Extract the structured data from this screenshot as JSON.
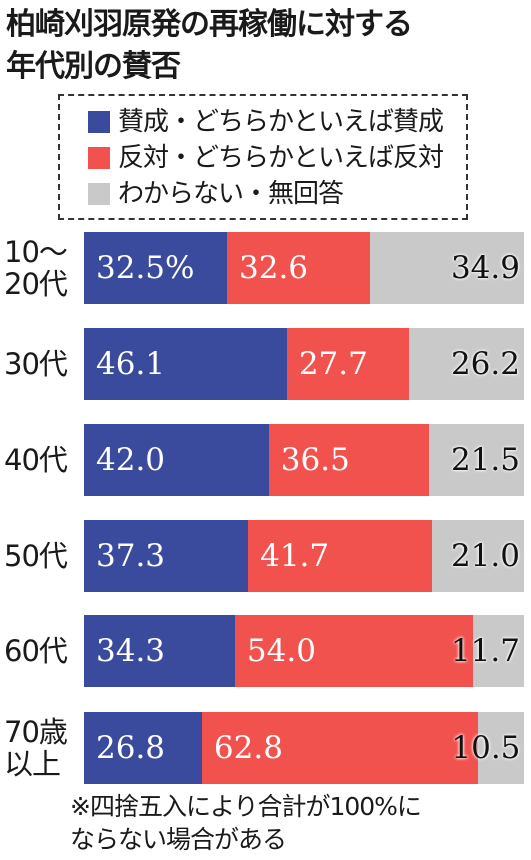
{
  "colors": {
    "approve": "#3a4a9c",
    "oppose": "#f1524d",
    "unknown": "#c9c9c9"
  },
  "chart_data": {
    "type": "bar",
    "orientation": "horizontal",
    "stacked": true,
    "title_lines": [
      "柏崎刈羽原発の再稼働に対する",
      "年代別の賛否"
    ],
    "categories": [
      "10〜20代",
      "30代",
      "40代",
      "50代",
      "60代",
      "70歳以上"
    ],
    "category_lines": [
      [
        "10〜",
        "20代"
      ],
      [
        "30代"
      ],
      [
        "40代"
      ],
      [
        "50代"
      ],
      [
        "60代"
      ],
      [
        "70歳",
        "以上"
      ]
    ],
    "series": [
      {
        "name": "賛成・どちらかといえば賛成",
        "key": "approve",
        "values": [
          32.5,
          46.1,
          42.0,
          37.3,
          34.3,
          26.8
        ]
      },
      {
        "name": "反対・どちらかといえば反対",
        "key": "oppose",
        "values": [
          32.6,
          27.7,
          36.5,
          41.7,
          54.0,
          62.8
        ]
      },
      {
        "name": "わからない・無回答",
        "key": "unknown",
        "values": [
          34.9,
          26.2,
          21.5,
          21.0,
          11.7,
          10.5
        ]
      }
    ],
    "value_labels": [
      [
        "32.5%",
        "32.6",
        "34.9"
      ],
      [
        "46.1",
        "27.7",
        "26.2"
      ],
      [
        "42.0",
        "36.5",
        "21.5"
      ],
      [
        "37.3",
        "41.7",
        "21.0"
      ],
      [
        "34.3",
        "54.0",
        "11.7"
      ],
      [
        "26.8",
        "62.8",
        "10.5"
      ]
    ],
    "unit": "%",
    "xlim": [
      0,
      100
    ],
    "legend_position": "top",
    "grid": false,
    "note_lines": [
      "※四捨五入により合計が100%に",
      "ならない場合がある"
    ]
  }
}
